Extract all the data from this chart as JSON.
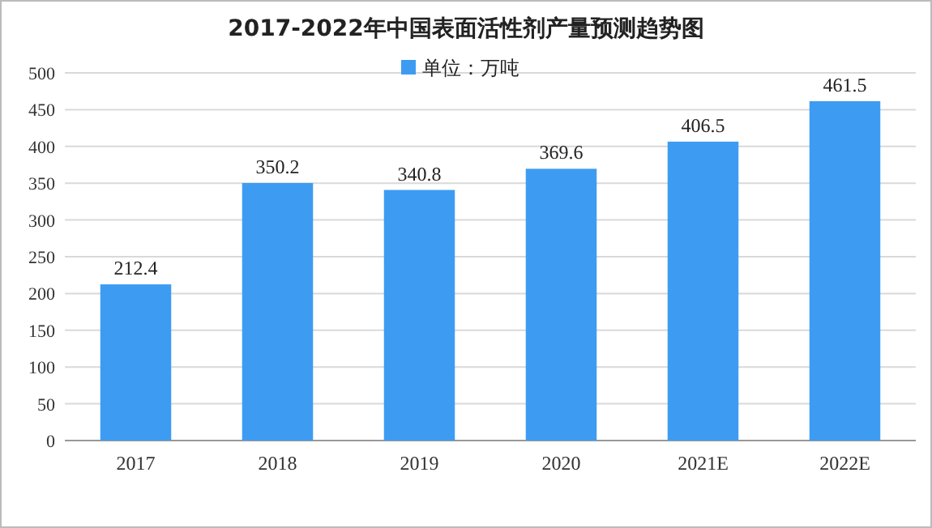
{
  "chart_data": {
    "type": "bar",
    "title": "2017-2022年中国表面活性剂产量预测趋势图",
    "categories": [
      "2017",
      "2018",
      "2019",
      "2020",
      "2021E",
      "2022E"
    ],
    "series": [
      {
        "name": "单位：万吨",
        "color": "#3d9cf2",
        "values": [
          212.4,
          350.2,
          340.8,
          369.6,
          406.5,
          461.5
        ]
      }
    ],
    "ylim": [
      0,
      500
    ],
    "yticks": [
      0,
      50,
      100,
      150,
      200,
      250,
      300,
      350,
      400,
      450,
      500
    ],
    "grid": "y",
    "legend": "top",
    "data_labels": true
  }
}
